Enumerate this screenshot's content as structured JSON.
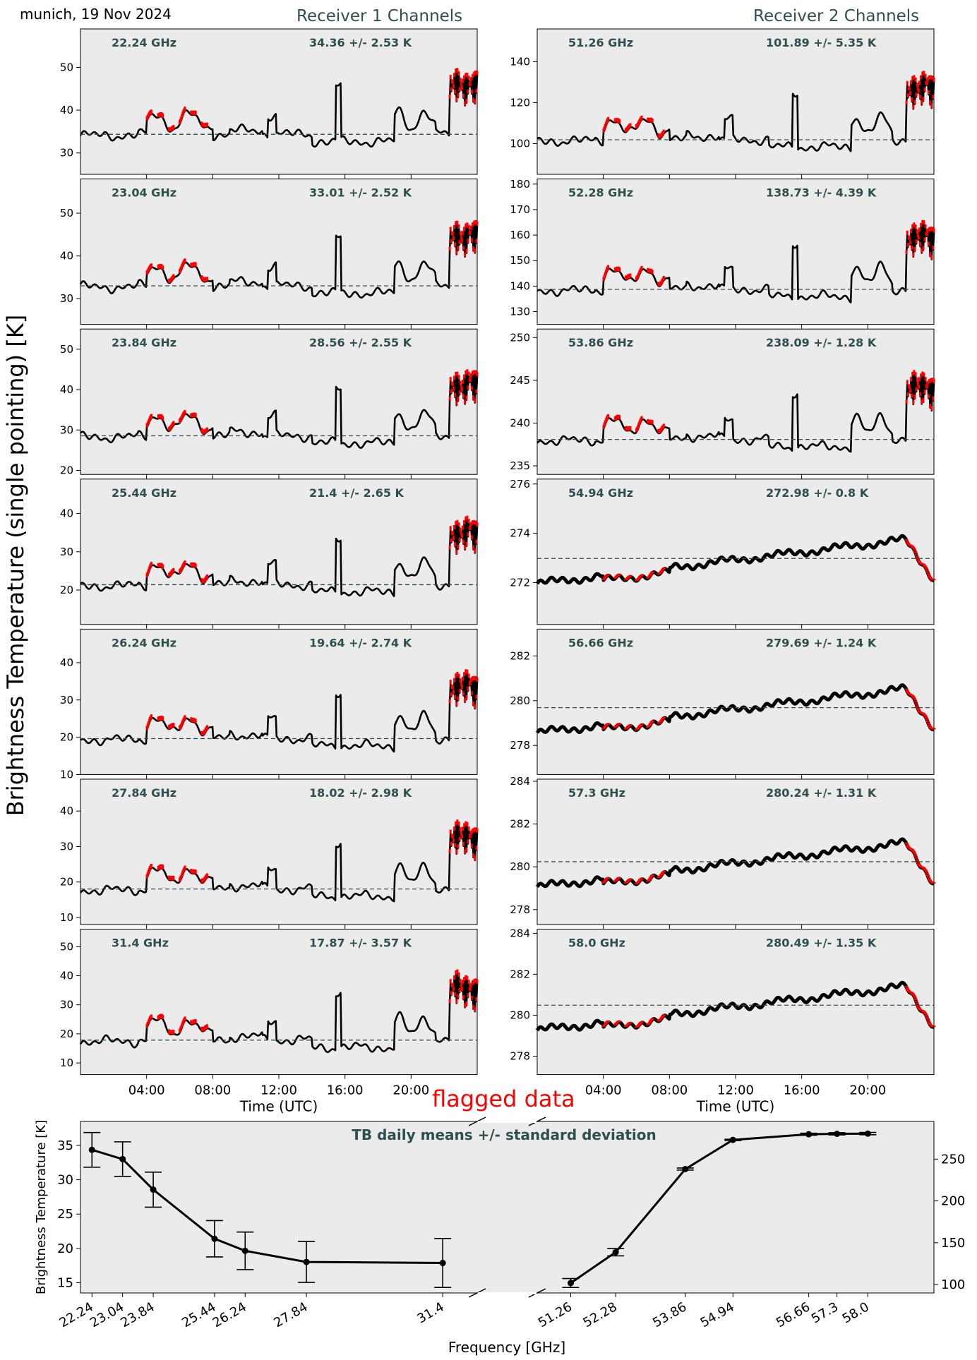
{
  "page": {
    "title": "munich, 19 Nov 2024",
    "receiver1_title": "Receiver 1 Channels",
    "receiver2_title": "Receiver 2 Channels",
    "ylabel": "Brightness Temperature (single pointing) [K]",
    "flagged_label": "flagged data",
    "xlabel_time": "Time (UTC)",
    "time_ticks": [
      "04:00",
      "08:00",
      "12:00",
      "16:00",
      "20:00"
    ]
  },
  "colors": {
    "background": "#ebebeb",
    "data": "#000000",
    "flagged": "#ff0000",
    "mean_line": "#2f4f4f",
    "annotation": "#2f4f4f"
  },
  "chart_data": [
    {
      "type": "line",
      "panel": "receiver-1",
      "x_range_hours": [
        0,
        24
      ],
      "channels": [
        {
          "freq_label": "22.24 GHz",
          "stats_label": "34.36 +/- 2.53 K",
          "mean": 34.36,
          "ylim": [
            25,
            59
          ],
          "yticks": [
            30,
            40,
            50
          ]
        },
        {
          "freq_label": "23.04 GHz",
          "stats_label": "33.01 +/- 2.52 K",
          "mean": 33.01,
          "ylim": [
            24,
            58
          ],
          "yticks": [
            30,
            40,
            50
          ]
        },
        {
          "freq_label": "23.84 GHz",
          "stats_label": "28.56 +/- 2.55 K",
          "mean": 28.56,
          "ylim": [
            19,
            55
          ],
          "yticks": [
            20,
            30,
            40,
            50
          ]
        },
        {
          "freq_label": "25.44 GHz",
          "stats_label": "21.4 +/- 2.65 K",
          "mean": 21.4,
          "ylim": [
            11,
            49
          ],
          "yticks": [
            20,
            30,
            40
          ]
        },
        {
          "freq_label": "26.24 GHz",
          "stats_label": "19.64 +/- 2.74 K",
          "mean": 19.64,
          "ylim": [
            10,
            49
          ],
          "yticks": [
            10,
            20,
            30,
            40
          ]
        },
        {
          "freq_label": "27.84 GHz",
          "stats_label": "18.02 +/- 2.98 K",
          "mean": 18.02,
          "ylim": [
            8,
            49
          ],
          "yticks": [
            10,
            20,
            30,
            40
          ]
        },
        {
          "freq_label": "31.4 GHz",
          "stats_label": "17.87 +/- 3.57 K",
          "mean": 17.87,
          "ylim": [
            6,
            56
          ],
          "yticks": [
            10,
            20,
            30,
            40,
            50
          ]
        }
      ]
    },
    {
      "type": "line",
      "panel": "receiver-2",
      "x_range_hours": [
        0,
        24
      ],
      "channels": [
        {
          "freq_label": "51.26 GHz",
          "stats_label": "101.89 +/- 5.35 K",
          "mean": 101.89,
          "ylim": [
            85,
            156
          ],
          "yticks": [
            100,
            120,
            140
          ]
        },
        {
          "freq_label": "52.28 GHz",
          "stats_label": "138.73 +/- 4.39 K",
          "mean": 138.73,
          "ylim": [
            125,
            182
          ],
          "yticks": [
            130,
            140,
            150,
            160,
            170,
            180
          ]
        },
        {
          "freq_label": "53.86 GHz",
          "stats_label": "238.09 +/- 1.28 K",
          "mean": 238.09,
          "ylim": [
            234,
            251
          ],
          "yticks": [
            235,
            240,
            245,
            250
          ]
        },
        {
          "freq_label": "54.94 GHz",
          "stats_label": "272.98 +/- 0.8 K",
          "mean": 272.98,
          "ylim": [
            270.3,
            276.2
          ],
          "yticks": [
            272,
            274,
            276
          ]
        },
        {
          "freq_label": "56.66 GHz",
          "stats_label": "279.69 +/- 1.24 K",
          "mean": 279.69,
          "ylim": [
            276.7,
            283.2
          ],
          "yticks": [
            278,
            280,
            282
          ]
        },
        {
          "freq_label": "57.3 GHz",
          "stats_label": "280.24 +/- 1.31 K",
          "mean": 280.24,
          "ylim": [
            277.3,
            284.1
          ],
          "yticks": [
            278,
            280,
            282,
            284
          ]
        },
        {
          "freq_label": "58.0 GHz",
          "stats_label": "280.49 +/- 1.35 K",
          "mean": 280.49,
          "ylim": [
            277.1,
            284.2
          ],
          "yticks": [
            278,
            280,
            282,
            284
          ]
        }
      ]
    },
    {
      "type": "line-errorbar",
      "title": "TB daily means +/- standard deviation",
      "xlabel": "Frequency [GHz]",
      "ylabel_left": "Brightness Temperature [K]",
      "left_ylim": [
        13.5,
        38.5
      ],
      "left_yticks": [
        15,
        20,
        25,
        30,
        35
      ],
      "right_ylim": [
        90,
        295
      ],
      "right_yticks": [
        100,
        150,
        200,
        250
      ],
      "left_xlim": [
        21.94,
        32.3
      ],
      "right_xlim": [
        50.5,
        59.5
      ],
      "left_series": {
        "x": [
          22.24,
          23.04,
          23.84,
          25.44,
          26.24,
          27.84,
          31.4
        ],
        "labels": [
          "22.24",
          "23.04",
          "23.84",
          "25.44",
          "26.24",
          "27.84",
          "31.4"
        ],
        "mean": [
          34.36,
          33.01,
          28.56,
          21.4,
          19.64,
          18.02,
          17.87
        ],
        "std": [
          2.53,
          2.52,
          2.55,
          2.65,
          2.74,
          2.98,
          3.57
        ]
      },
      "right_series": {
        "x": [
          51.26,
          52.28,
          53.86,
          54.94,
          56.66,
          57.3,
          58.0
        ],
        "labels": [
          "51.26",
          "52.28",
          "53.86",
          "54.94",
          "56.66",
          "57.3",
          "58.0"
        ],
        "mean": [
          101.89,
          138.73,
          238.09,
          272.98,
          279.69,
          280.24,
          280.49
        ],
        "std": [
          5.35,
          4.39,
          1.28,
          0.8,
          1.24,
          1.31,
          1.35
        ]
      }
    }
  ]
}
